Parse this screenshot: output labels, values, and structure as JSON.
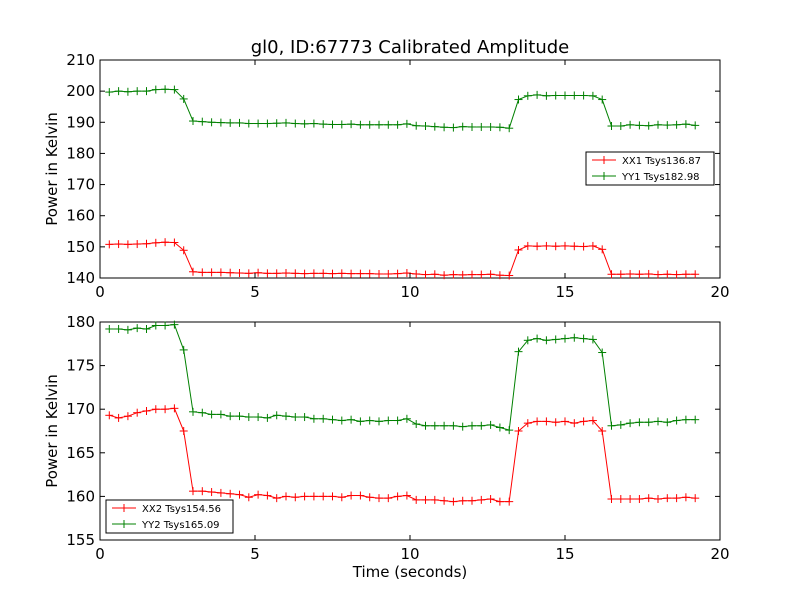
{
  "figure": {
    "background": "#ffffff"
  },
  "chart_data": [
    {
      "type": "line",
      "title": "gl0, ID:67773 Calibrated Amplitude",
      "xlabel": "",
      "ylabel": "Power in Kelvin",
      "xlim": [
        0,
        20
      ],
      "ylim": [
        140,
        210
      ],
      "xticks": [
        0,
        5,
        10,
        15,
        20
      ],
      "yticks": [
        140,
        150,
        160,
        170,
        180,
        190,
        200,
        210
      ],
      "xtick_labels": [
        "0",
        "5",
        "10",
        "15",
        "20"
      ],
      "ytick_labels": [
        "140",
        "150",
        "160",
        "170",
        "180",
        "190",
        "200",
        "210"
      ],
      "grid": false,
      "legend_position": "center-right",
      "x": [
        0.3,
        0.6,
        0.9,
        1.2,
        1.5,
        1.8,
        2.1,
        2.4,
        2.7,
        3.0,
        3.3,
        3.6,
        3.9,
        4.2,
        4.5,
        4.8,
        5.1,
        5.4,
        5.7,
        6.0,
        6.3,
        6.6,
        6.9,
        7.2,
        7.5,
        7.8,
        8.1,
        8.4,
        8.7,
        9.0,
        9.3,
        9.6,
        9.9,
        10.2,
        10.5,
        10.8,
        11.1,
        11.4,
        11.7,
        12.0,
        12.3,
        12.6,
        12.9,
        13.2,
        13.5,
        13.8,
        14.1,
        14.4,
        14.7,
        15.0,
        15.3,
        15.6,
        15.9,
        16.2,
        16.5,
        16.8,
        17.1,
        17.4,
        17.7,
        18.0,
        18.3,
        18.6,
        18.9,
        19.2
      ],
      "series": [
        {
          "name": "XX1 Tsys136.87",
          "color": "#ff0000",
          "values": [
            150.8,
            150.9,
            150.8,
            150.9,
            151.0,
            151.3,
            151.5,
            151.4,
            148.9,
            142.0,
            141.8,
            141.8,
            141.8,
            141.7,
            141.6,
            141.5,
            141.7,
            141.5,
            141.5,
            141.6,
            141.5,
            141.4,
            141.5,
            141.5,
            141.4,
            141.5,
            141.4,
            141.4,
            141.4,
            141.3,
            141.3,
            141.4,
            141.6,
            141.3,
            141.1,
            141.2,
            140.9,
            141.1,
            141.0,
            141.1,
            141.1,
            141.2,
            140.9,
            140.8,
            149.0,
            150.3,
            150.2,
            150.3,
            150.2,
            150.3,
            150.2,
            150.1,
            150.3,
            149.2,
            141.2,
            141.2,
            141.3,
            141.2,
            141.3,
            141.1,
            141.2,
            141.1,
            141.2,
            141.2
          ]
        },
        {
          "name": "YY1 Tsys182.98",
          "color": "#008000",
          "values": [
            199.7,
            200.0,
            199.8,
            200.0,
            200.0,
            200.5,
            200.6,
            200.5,
            197.5,
            190.4,
            190.2,
            190.0,
            189.9,
            189.8,
            189.8,
            189.6,
            189.6,
            189.6,
            189.7,
            189.8,
            189.6,
            189.5,
            189.6,
            189.4,
            189.3,
            189.3,
            189.4,
            189.2,
            189.2,
            189.2,
            189.2,
            189.2,
            189.5,
            188.9,
            188.8,
            188.6,
            188.4,
            188.3,
            188.6,
            188.5,
            188.5,
            188.5,
            188.4,
            188.1,
            197.3,
            198.5,
            198.8,
            198.5,
            198.6,
            198.6,
            198.6,
            198.6,
            198.5,
            197.3,
            188.8,
            188.8,
            189.2,
            189.0,
            188.9,
            189.2,
            189.1,
            189.2,
            189.4,
            189.0
          ]
        }
      ]
    },
    {
      "type": "line",
      "title": "",
      "xlabel": "Time (seconds)",
      "ylabel": "Power in Kelvin",
      "xlim": [
        0,
        20
      ],
      "ylim": [
        155,
        180
      ],
      "xticks": [
        0,
        5,
        10,
        15,
        20
      ],
      "yticks": [
        155,
        160,
        165,
        170,
        175,
        180
      ],
      "xtick_labels": [
        "0",
        "5",
        "10",
        "15",
        "20"
      ],
      "ytick_labels": [
        "155",
        "160",
        "165",
        "170",
        "175",
        "180"
      ],
      "grid": false,
      "legend_position": "lower-left",
      "x": [
        0.3,
        0.6,
        0.9,
        1.2,
        1.5,
        1.8,
        2.1,
        2.4,
        2.7,
        3.0,
        3.3,
        3.6,
        3.9,
        4.2,
        4.5,
        4.8,
        5.1,
        5.4,
        5.7,
        6.0,
        6.3,
        6.6,
        6.9,
        7.2,
        7.5,
        7.8,
        8.1,
        8.4,
        8.7,
        9.0,
        9.3,
        9.6,
        9.9,
        10.2,
        10.5,
        10.8,
        11.1,
        11.4,
        11.7,
        12.0,
        12.3,
        12.6,
        12.9,
        13.2,
        13.5,
        13.8,
        14.1,
        14.4,
        14.7,
        15.0,
        15.3,
        15.6,
        15.9,
        16.2,
        16.5,
        16.8,
        17.1,
        17.4,
        17.7,
        18.0,
        18.3,
        18.6,
        18.9,
        19.2
      ],
      "series": [
        {
          "name": "XX2 Tsys154.56",
          "color": "#ff0000",
          "values": [
            169.3,
            169.0,
            169.2,
            169.6,
            169.8,
            170.0,
            170.0,
            170.1,
            167.5,
            160.6,
            160.6,
            160.5,
            160.4,
            160.3,
            160.2,
            159.9,
            160.2,
            160.1,
            159.8,
            160.0,
            159.9,
            160.0,
            160.0,
            160.0,
            160.0,
            159.9,
            160.1,
            160.1,
            159.9,
            159.8,
            159.8,
            160.0,
            160.1,
            159.6,
            159.6,
            159.6,
            159.5,
            159.4,
            159.5,
            159.5,
            159.6,
            159.7,
            159.4,
            159.4,
            167.5,
            168.4,
            168.6,
            168.6,
            168.5,
            168.6,
            168.4,
            168.6,
            168.7,
            167.5,
            159.7,
            159.7,
            159.7,
            159.7,
            159.8,
            159.7,
            159.8,
            159.8,
            159.9,
            159.8
          ]
        },
        {
          "name": "YY2 Tsys165.09",
          "color": "#008000",
          "values": [
            179.2,
            179.2,
            179.1,
            179.3,
            179.2,
            179.6,
            179.6,
            179.7,
            176.8,
            169.7,
            169.6,
            169.4,
            169.4,
            169.2,
            169.2,
            169.1,
            169.1,
            169.0,
            169.3,
            169.2,
            169.1,
            169.1,
            168.9,
            168.9,
            168.8,
            168.7,
            168.8,
            168.6,
            168.7,
            168.6,
            168.7,
            168.7,
            168.9,
            168.3,
            168.1,
            168.1,
            168.1,
            168.1,
            168.0,
            168.1,
            168.1,
            168.2,
            167.9,
            167.6,
            176.6,
            177.9,
            178.1,
            177.9,
            178.0,
            178.1,
            178.2,
            178.1,
            178.0,
            176.5,
            168.1,
            168.2,
            168.4,
            168.5,
            168.5,
            168.6,
            168.5,
            168.7,
            168.8,
            168.8
          ]
        }
      ]
    }
  ]
}
